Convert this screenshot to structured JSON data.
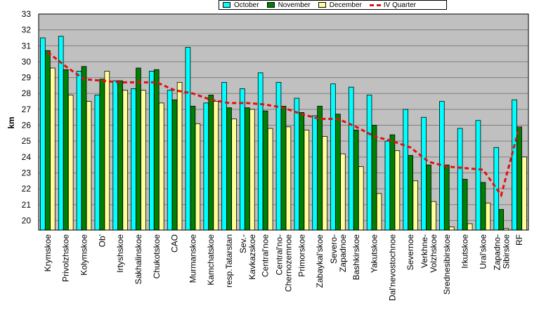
{
  "chart_data": {
    "type": "bar",
    "title": "",
    "xlabel": "",
    "ylabel": "km",
    "ylim": [
      19.4,
      33
    ],
    "yticks": [
      20,
      21,
      22,
      23,
      24,
      25,
      26,
      27,
      28,
      29,
      30,
      31,
      32,
      33
    ],
    "grid": true,
    "legend_position": "top-center",
    "categories": [
      "Krymskoe",
      "Privolzhskoe",
      "Kolymskoe",
      "Ob'",
      "Irtyshskoe",
      "Sakhalinskoe",
      "Chukotskoe",
      "CAO",
      "Murmanskoe",
      "Kamchatskoe",
      "resp.Tatarstan",
      "Sev.-Kavkazskoe",
      "Central'noe",
      "Central'no-Chernozemnoe",
      "Primorskoe",
      "Zabaykal'skoe",
      "Severo-Zapadnoe",
      "Bashkirskoe",
      "Yakutskoe",
      "Dal'nevostochnoe",
      "Severnoe",
      "Verkhne-Volzhskoe",
      "Srednesibirskoe",
      "Irkutskoe",
      "Ural'skoe",
      "Zapadno-Sibirskoe",
      "RF"
    ],
    "series": [
      {
        "name": "October",
        "color": "#00ffff",
        "values": [
          31.5,
          31.6,
          29.4,
          27.9,
          28.8,
          28.3,
          29.4,
          28.2,
          30.9,
          27.4,
          28.7,
          28.3,
          29.3,
          28.7,
          27.7,
          26.6,
          28.6,
          28.4,
          27.9,
          25.0,
          27.0,
          26.5,
          27.5,
          25.8,
          26.3,
          24.6,
          27.6
        ]
      },
      {
        "name": "November",
        "color": "#008000",
        "values": [
          30.7,
          29.5,
          29.7,
          28.9,
          28.8,
          29.6,
          29.5,
          27.6,
          27.2,
          27.9,
          27.1,
          27.1,
          26.9,
          27.2,
          26.8,
          27.2,
          26.7,
          25.7,
          26.0,
          25.4,
          24.1,
          23.5,
          23.5,
          22.6,
          22.4,
          20.7,
          25.9
        ]
      },
      {
        "name": "December",
        "color": "#ffff99",
        "values": [
          29.6,
          27.9,
          27.5,
          29.4,
          28.2,
          28.2,
          27.4,
          28.7,
          26.1,
          27.5,
          26.4,
          27.0,
          25.8,
          25.9,
          25.7,
          25.3,
          24.2,
          23.4,
          21.7,
          24.4,
          22.5,
          21.2,
          19.6,
          19.8,
          21.1,
          19.5,
          24.0
        ]
      },
      {
        "name": "IV Quarter",
        "color": "#e01010",
        "type": "line",
        "values": [
          30.6,
          29.7,
          28.9,
          28.8,
          28.7,
          28.7,
          28.7,
          28.2,
          28.0,
          27.6,
          27.4,
          27.4,
          27.3,
          27.1,
          26.7,
          26.4,
          26.4,
          25.9,
          25.3,
          25.0,
          24.6,
          23.7,
          23.4,
          23.3,
          23.2,
          21.6,
          25.9
        ]
      }
    ]
  },
  "legend": {
    "october": "October",
    "november": "November",
    "december": "December",
    "quarter": "IV Quarter"
  }
}
